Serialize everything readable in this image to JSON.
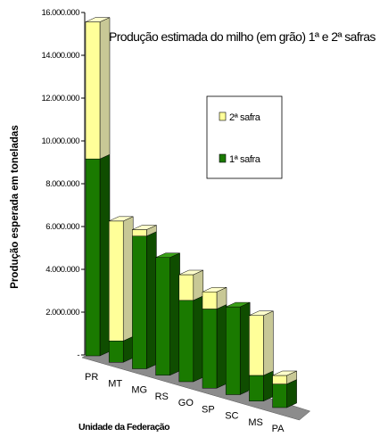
{
  "chart_data": {
    "type": "bar",
    "stacked": true,
    "three_d": true,
    "title": "Produção estimada do milho (em grão) 1ª e 2ª safras",
    "ylabel": "Produção esperada em toneladas",
    "xlabel": "Unidade da Federação",
    "ylim": [
      0,
      16000000
    ],
    "yticks": [
      {
        "value": 0,
        "label": "-"
      },
      {
        "value": 2000000,
        "label": "2.000.000"
      },
      {
        "value": 4000000,
        "label": "4.000.000"
      },
      {
        "value": 6000000,
        "label": "6.000.000"
      },
      {
        "value": 8000000,
        "label": "8.000.000"
      },
      {
        "value": 10000000,
        "label": "10.000.000"
      },
      {
        "value": 12000000,
        "label": "12.000.000"
      },
      {
        "value": 14000000,
        "label": "14.000.000"
      },
      {
        "value": 16000000,
        "label": "16.000.000"
      }
    ],
    "categories": [
      "PR",
      "MT",
      "MG",
      "RS",
      "GO",
      "SP",
      "SC",
      "MS",
      "PA"
    ],
    "series": [
      {
        "name": "1ª safra",
        "color": "#1a7a00",
        "values": [
          9200000,
          1000000,
          6200000,
          5500000,
          3800000,
          3700000,
          4100000,
          1200000,
          1100000
        ]
      },
      {
        "name": "2ª safra",
        "color": "#ffff99",
        "values": [
          6400000,
          5600000,
          300000,
          0,
          1200000,
          800000,
          0,
          2800000,
          400000
        ]
      }
    ],
    "legend": {
      "position": "right",
      "order": [
        "2ª safra",
        "1ª safra"
      ]
    },
    "grid": false
  },
  "colors": {
    "green_front": "#1a7a00",
    "green_side": "#0f4d00",
    "green_top": "#3aa018",
    "yellow_front": "#ffff99",
    "yellow_side": "#c8c896",
    "yellow_top": "#ffffcc",
    "floor": "#8c8c8c"
  }
}
